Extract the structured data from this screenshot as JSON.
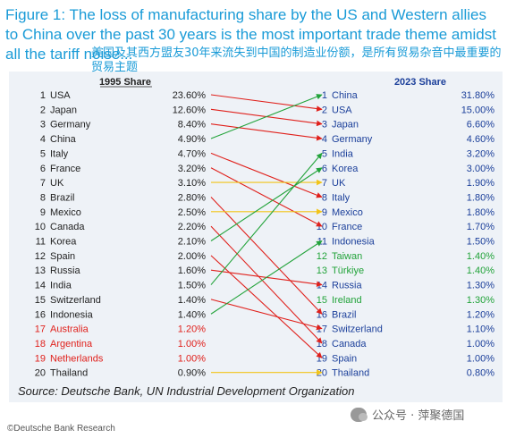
{
  "title": "Figure 1: The loss of manufacturing share by the US and Western allies to China over the past 30 years is the most important trade theme amidst all the tariff noise...",
  "subtitle_cn": "美国及其西方盟友30年来流失到中国的制造业份额，是所有贸易杂音中最重要的贸易主题",
  "source": "Source: Deutsche Bank, UN Industrial Development Organization",
  "copyright": "©Deutsche Bank Research",
  "wechat": "公众号 · 萍聚德国",
  "chart_data": {
    "type": "table",
    "left_header": "1995 Share",
    "right_header": "2023 Share",
    "left": [
      {
        "rank": "1",
        "country": "USA",
        "share": "23.60%",
        "color": "#222222"
      },
      {
        "rank": "2",
        "country": "Japan",
        "share": "12.60%",
        "color": "#222222"
      },
      {
        "rank": "3",
        "country": "Germany",
        "share": "8.40%",
        "color": "#222222"
      },
      {
        "rank": "4",
        "country": "China",
        "share": "4.90%",
        "color": "#222222"
      },
      {
        "rank": "5",
        "country": "Italy",
        "share": "4.70%",
        "color": "#222222"
      },
      {
        "rank": "6",
        "country": "France",
        "share": "3.20%",
        "color": "#222222"
      },
      {
        "rank": "7",
        "country": "UK",
        "share": "3.10%",
        "color": "#222222"
      },
      {
        "rank": "8",
        "country": "Brazil",
        "share": "2.80%",
        "color": "#222222"
      },
      {
        "rank": "9",
        "country": "Mexico",
        "share": "2.50%",
        "color": "#222222"
      },
      {
        "rank": "10",
        "country": "Canada",
        "share": "2.20%",
        "color": "#222222"
      },
      {
        "rank": "11",
        "country": "Korea",
        "share": "2.10%",
        "color": "#222222"
      },
      {
        "rank": "12",
        "country": "Spain",
        "share": "2.00%",
        "color": "#222222"
      },
      {
        "rank": "13",
        "country": "Russia",
        "share": "1.60%",
        "color": "#222222"
      },
      {
        "rank": "14",
        "country": "India",
        "share": "1.50%",
        "color": "#222222"
      },
      {
        "rank": "15",
        "country": "Switzerland",
        "share": "1.40%",
        "color": "#222222"
      },
      {
        "rank": "16",
        "country": "Indonesia",
        "share": "1.40%",
        "color": "#222222"
      },
      {
        "rank": "17",
        "country": "Australia",
        "share": "1.20%",
        "color": "#e0201b"
      },
      {
        "rank": "18",
        "country": "Argentina",
        "share": "1.00%",
        "color": "#e0201b"
      },
      {
        "rank": "19",
        "country": "Netherlands",
        "share": "1.00%",
        "color": "#e0201b"
      },
      {
        "rank": "20",
        "country": "Thailand",
        "share": "0.90%",
        "color": "#222222"
      }
    ],
    "right": [
      {
        "rank": "1",
        "country": "China",
        "share": "31.80%",
        "color": "#1b3f9a"
      },
      {
        "rank": "2",
        "country": "USA",
        "share": "15.00%",
        "color": "#1b3f9a"
      },
      {
        "rank": "3",
        "country": "Japan",
        "share": "6.60%",
        "color": "#1b3f9a"
      },
      {
        "rank": "4",
        "country": "Germany",
        "share": "4.60%",
        "color": "#1b3f9a"
      },
      {
        "rank": "5",
        "country": "India",
        "share": "3.20%",
        "color": "#1b3f9a"
      },
      {
        "rank": "6",
        "country": "Korea",
        "share": "3.00%",
        "color": "#1b3f9a"
      },
      {
        "rank": "7",
        "country": "UK",
        "share": "1.90%",
        "color": "#1b3f9a"
      },
      {
        "rank": "8",
        "country": "Italy",
        "share": "1.80%",
        "color": "#1b3f9a"
      },
      {
        "rank": "9",
        "country": "Mexico",
        "share": "1.80%",
        "color": "#1b3f9a"
      },
      {
        "rank": "10",
        "country": "France",
        "share": "1.70%",
        "color": "#1b3f9a"
      },
      {
        "rank": "11",
        "country": "Indonesia",
        "share": "1.50%",
        "color": "#1b3f9a"
      },
      {
        "rank": "12",
        "country": "Taiwan",
        "share": "1.40%",
        "color": "#22a33a"
      },
      {
        "rank": "13",
        "country": "Türkiye",
        "share": "1.40%",
        "color": "#22a33a"
      },
      {
        "rank": "14",
        "country": "Russia",
        "share": "1.30%",
        "color": "#1b3f9a"
      },
      {
        "rank": "15",
        "country": "Ireland",
        "share": "1.30%",
        "color": "#22a33a"
      },
      {
        "rank": "16",
        "country": "Brazil",
        "share": "1.20%",
        "color": "#1b3f9a"
      },
      {
        "rank": "17",
        "country": "Switzerland",
        "share": "1.10%",
        "color": "#1b3f9a"
      },
      {
        "rank": "18",
        "country": "Canada",
        "share": "1.00%",
        "color": "#1b3f9a"
      },
      {
        "rank": "19",
        "country": "Spain",
        "share": "1.00%",
        "color": "#1b3f9a"
      },
      {
        "rank": "20",
        "country": "Thailand",
        "share": "0.80%",
        "color": "#1b3f9a"
      }
    ],
    "links": [
      {
        "from": 1,
        "to": 2,
        "color": "#e0201b"
      },
      {
        "from": 2,
        "to": 3,
        "color": "#e0201b"
      },
      {
        "from": 3,
        "to": 4,
        "color": "#e0201b"
      },
      {
        "from": 4,
        "to": 1,
        "color": "#22a33a"
      },
      {
        "from": 5,
        "to": 8,
        "color": "#e0201b"
      },
      {
        "from": 6,
        "to": 10,
        "color": "#e0201b"
      },
      {
        "from": 7,
        "to": 7,
        "color": "#f2c418"
      },
      {
        "from": 8,
        "to": 16,
        "color": "#e0201b"
      },
      {
        "from": 9,
        "to": 9,
        "color": "#f2c418"
      },
      {
        "from": 10,
        "to": 18,
        "color": "#e0201b"
      },
      {
        "from": 11,
        "to": 6,
        "color": "#22a33a"
      },
      {
        "from": 12,
        "to": 19,
        "color": "#e0201b"
      },
      {
        "from": 13,
        "to": 14,
        "color": "#e0201b"
      },
      {
        "from": 14,
        "to": 5,
        "color": "#22a33a"
      },
      {
        "from": 15,
        "to": 17,
        "color": "#e0201b"
      },
      {
        "from": 16,
        "to": 11,
        "color": "#22a33a"
      },
      {
        "from": 20,
        "to": 20,
        "color": "#f2c418"
      }
    ]
  }
}
